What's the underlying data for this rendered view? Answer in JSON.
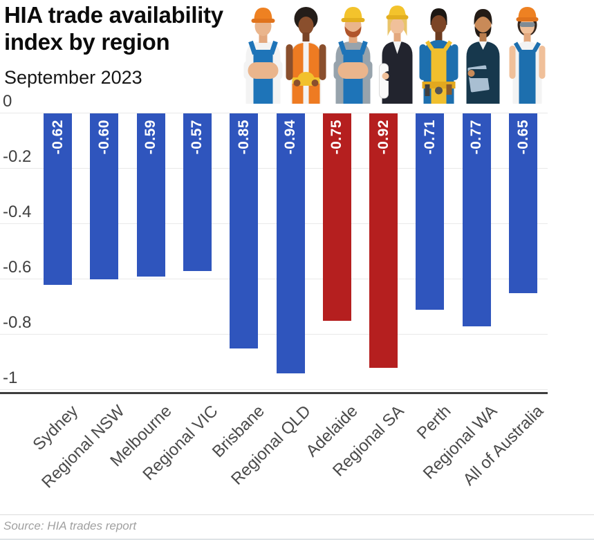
{
  "header": {
    "title": "HIA trade availability index by region",
    "subtitle": "September 2023"
  },
  "footer": {
    "source": "Source: HIA trades report"
  },
  "colors": {
    "bar_blue": "#2f55bd",
    "bar_red": "#b51f1f",
    "gridline": "#e9e9e9",
    "axis_line": "#3d3d3d",
    "value_label": "#ffffff"
  },
  "chart_data": {
    "type": "bar",
    "title": "HIA trade availability index by region",
    "subtitle": "September 2023",
    "source": "Source: HIA trades report",
    "categories": [
      "Sydney",
      "Regional NSW",
      "Melbourne",
      "Regional VIC",
      "Brisbane",
      "Regional QLD",
      "Adelaide",
      "Regional SA",
      "Perth",
      "Regional WA",
      "All of Australia"
    ],
    "values": [
      -0.62,
      -0.6,
      -0.59,
      -0.57,
      -0.85,
      -0.94,
      -0.75,
      -0.92,
      -0.71,
      -0.77,
      -0.65
    ],
    "value_labels": [
      "-0.62",
      "-0.60",
      "-0.59",
      "-0.57",
      "-0.85",
      "-0.94",
      "-0.75",
      "-0.92",
      "-0.71",
      "-0.77",
      "-0.65"
    ],
    "highlight_indexes": [
      6,
      7
    ],
    "series_color": "#2f55bd",
    "highlight_color": "#b51f1f",
    "xlabel": "",
    "ylabel": "",
    "ylim": [
      -1,
      0
    ],
    "yticks": [
      0,
      -0.2,
      -0.4,
      -0.6,
      -0.8,
      -1
    ],
    "ytick_labels": [
      "0",
      "-0.2",
      "-0.4",
      "-0.6",
      "-0.8",
      "-1"
    ],
    "grid": true,
    "legend": false,
    "orientation": "vertical-negative"
  }
}
